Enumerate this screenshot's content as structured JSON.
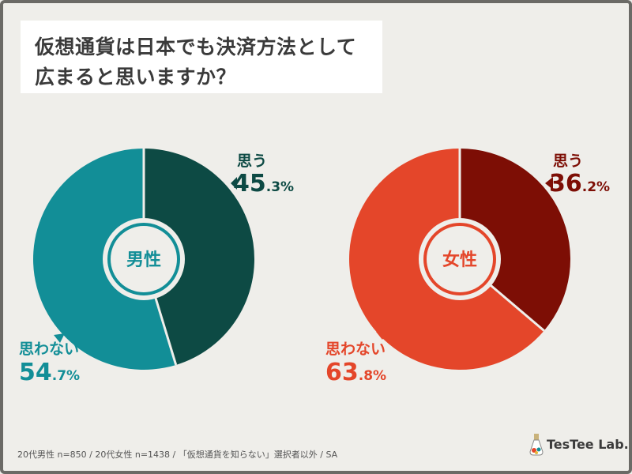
{
  "title": {
    "line1": "仮想通貨は日本でも決済方法として",
    "line2": "広まると思いますか？"
  },
  "chart_data": [
    {
      "type": "pie",
      "center_label": "男性",
      "slices": [
        {
          "label": "思う",
          "value": 45.3,
          "int": "45",
          "dec": ".3%",
          "color": "#0d4a44",
          "label_color": "#0d4a44"
        },
        {
          "label": "思わない",
          "value": 54.7,
          "int": "54",
          "dec": ".7%",
          "color": "#128e97",
          "label_color": "#128e97"
        }
      ]
    },
    {
      "type": "pie",
      "center_label": "女性",
      "slices": [
        {
          "label": "思う",
          "value": 36.2,
          "int": "36",
          "dec": ".2%",
          "color": "#7d0e05",
          "label_color": "#7d0e05"
        },
        {
          "label": "思わない",
          "value": 63.8,
          "int": "63",
          "dec": ".8%",
          "color": "#e4462a",
          "label_color": "#e4462a"
        }
      ]
    }
  ],
  "footnote": "20代男性 n=850 / 20代女性 n=1438 / 「仮想通貨を知らない」選択者以外 / SA",
  "logo": {
    "text": "TesTee Lab.",
    "icon": "flask-icon"
  }
}
